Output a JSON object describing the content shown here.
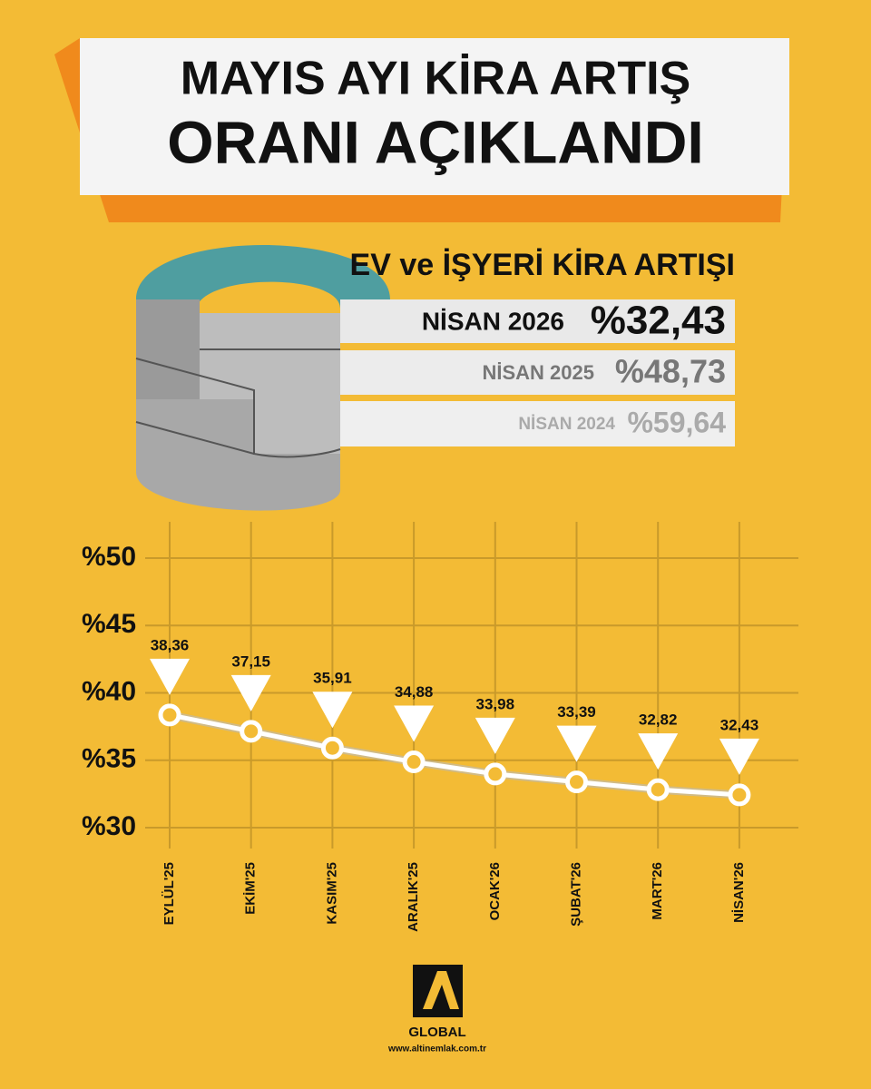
{
  "header": {
    "title_lines": [
      "MAYIS AYI KİRA ARTIŞ",
      "ORANI AÇIKLANDI"
    ]
  },
  "summary": {
    "heading": "EV ve İŞYERİ KİRA ARTIŞI",
    "rows": [
      {
        "label": "NİSAN 2026",
        "value": "%32,43"
      },
      {
        "label": "NİSAN 2025",
        "value": "%48,73"
      },
      {
        "label": "NİSAN 2024",
        "value": "%59,64"
      }
    ]
  },
  "chart_data": {
    "type": "line",
    "categories": [
      "EYLÜL'25",
      "EKİM'25",
      "KASIM'25",
      "ARALIK'25",
      "OCAK'26",
      "ŞUBAT'26",
      "MART'26",
      "NİSAN'26"
    ],
    "values": [
      38.36,
      37.15,
      35.91,
      34.88,
      33.98,
      33.39,
      32.82,
      32.43
    ],
    "value_labels": [
      "38,36",
      "37,15",
      "35,91",
      "34,88",
      "33,98",
      "33,39",
      "32,82",
      "32,43"
    ],
    "color": "#ffffff",
    "ylim": [
      30,
      50
    ],
    "yticks": [
      {
        "value": 30,
        "label": "%30"
      },
      {
        "value": 35,
        "label": "%35"
      },
      {
        "value": 40,
        "label": "%40"
      },
      {
        "value": 45,
        "label": "%45"
      },
      {
        "value": 50,
        "label": "%50"
      }
    ],
    "grid": true
  },
  "footer": {
    "brand": "GLOBAL",
    "url": "www.altinemlak.com.tr"
  }
}
